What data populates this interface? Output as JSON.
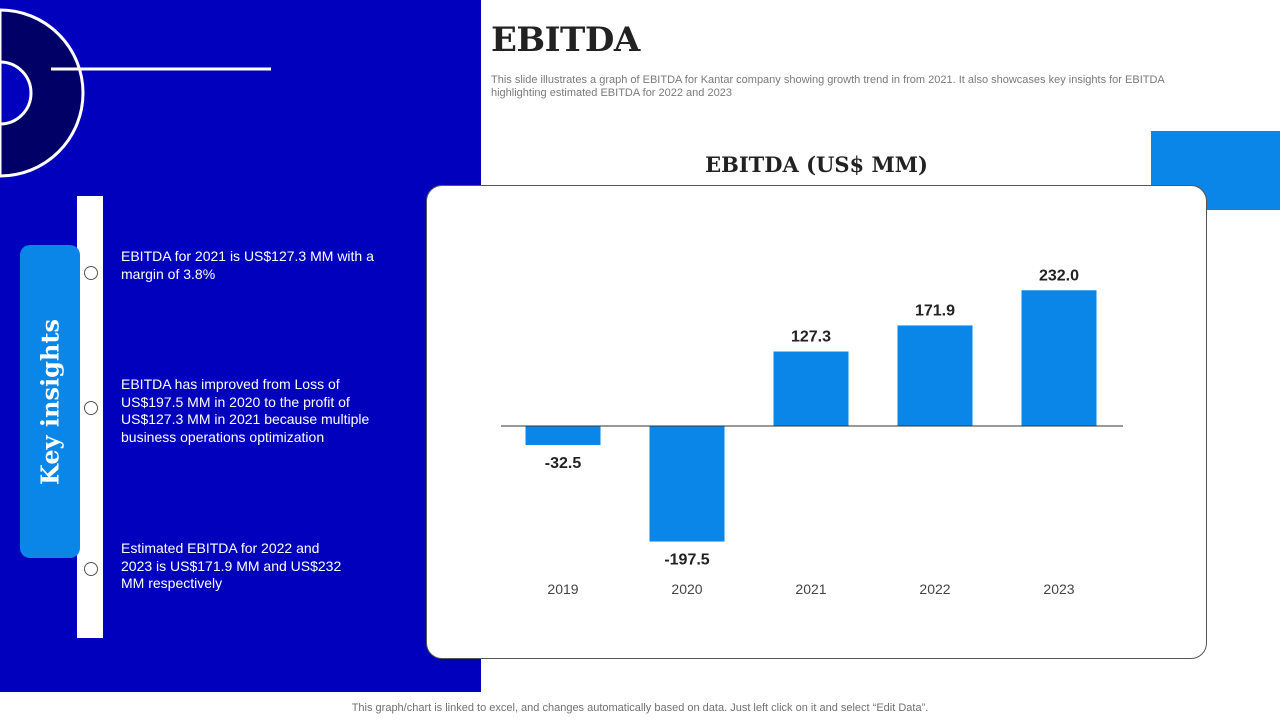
{
  "header": {
    "title": "EBITDA",
    "subtitle": "This slide illustrates a graph of EBITDA for Kantar company showing growth trend in from 2021. It also showcases key insights for EBITDA highlighting estimated EBITDA for 2022 and 2023"
  },
  "sidebar": {
    "tab_label": "Key insights",
    "insights": [
      {
        "text": "EBITDA for 2021 is US$127.3 MM with a margin of 3.8%"
      },
      {
        "text": "EBITDA has improved from Loss of US$197.5 MM in 2020 to the profit of US$127.3 MM in 2021 because multiple business operations optimization"
      },
      {
        "text": "Estimated EBITDA for 2022 and 2023 is US$171.9 MM and US$232 MM respectively"
      }
    ]
  },
  "colors": {
    "panel_blue": "#0000bd",
    "accent_blue": "#0a86e8",
    "dark_navy": "#000066"
  },
  "chart_data": {
    "type": "bar",
    "title": "EBITDA (US$ MM)",
    "categories": [
      "2019",
      "2020",
      "2021",
      "2022",
      "2023"
    ],
    "values": [
      -32.5,
      -197.5,
      127.3,
      171.9,
      232.0
    ],
    "value_labels": [
      "-32.5",
      "-197.5",
      "127.3",
      "171.9",
      "232.0"
    ],
    "xlabel": "",
    "ylabel": "",
    "ylim": [
      -197.5,
      232.0
    ],
    "grid": false,
    "legend": "none",
    "bar_color": "#0a86e8"
  },
  "footer": {
    "note": "This graph/chart is linked to excel, and changes automatically based on data. Just left click on it and select “Edit Data”."
  }
}
